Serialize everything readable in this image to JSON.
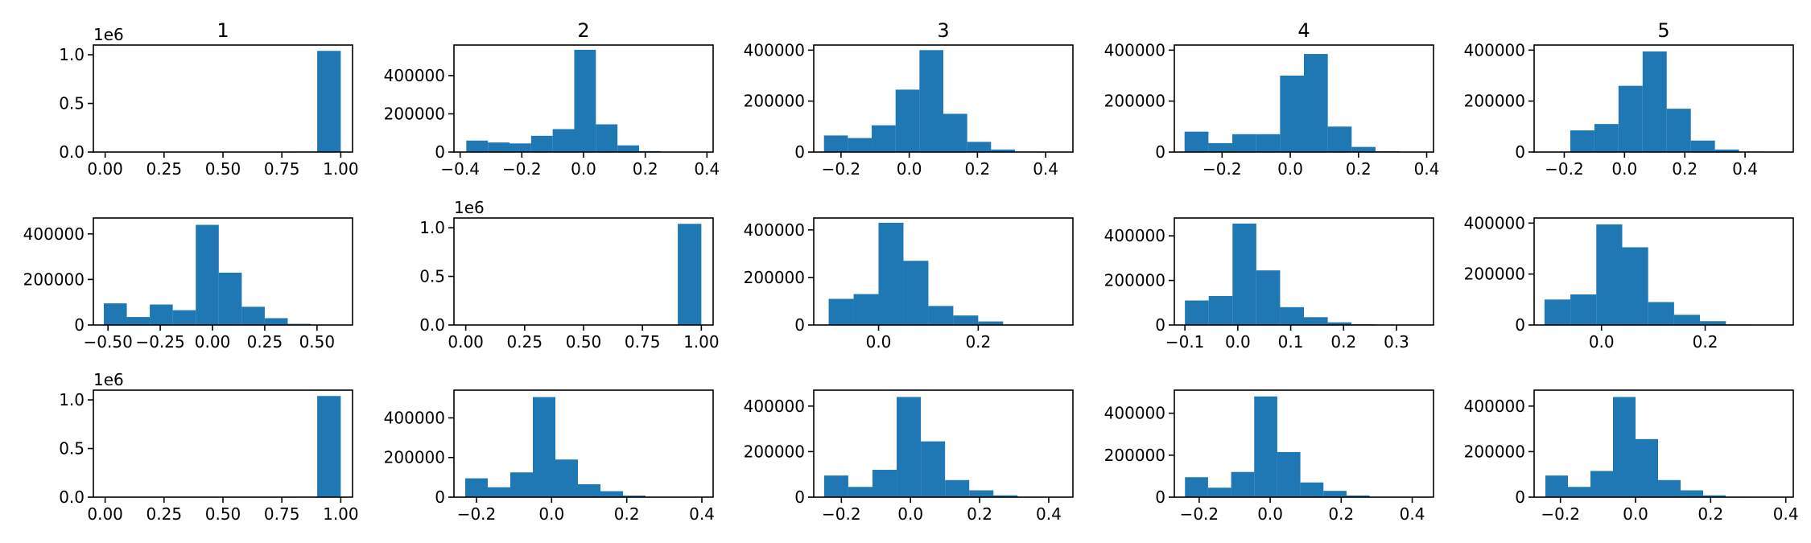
{
  "chart_data": {
    "type": "bar",
    "layout": "3x5 grid of histograms",
    "color": "#1f77b4",
    "panels": [
      {
        "row": 1,
        "col": 1,
        "title": "1",
        "xlim": [
          -0.05,
          1.05
        ],
        "ylim": [
          0,
          1100000
        ],
        "y_offset_label": "1e6",
        "xticks": [
          0.0,
          0.25,
          0.5,
          0.75,
          1.0
        ],
        "xtick_labels": [
          "0.00",
          "0.25",
          "0.50",
          "0.75",
          "1.00"
        ],
        "yticks": [
          0,
          500000,
          1000000
        ],
        "ytick_labels": [
          "0.0",
          "0.5",
          "1.0"
        ],
        "bin_edges": [
          0.0,
          0.1,
          0.2,
          0.3,
          0.4,
          0.5,
          0.6,
          0.7,
          0.8,
          0.9,
          1.0
        ],
        "counts": [
          0,
          0,
          0,
          0,
          0,
          0,
          0,
          0,
          5000,
          1040000
        ]
      },
      {
        "row": 1,
        "col": 2,
        "title": "2",
        "xlim": [
          -0.42,
          0.42
        ],
        "ylim": [
          0,
          560000
        ],
        "y_offset_label": "",
        "xticks": [
          -0.4,
          -0.2,
          0.0,
          0.2,
          0.4
        ],
        "xtick_labels": [
          "−0.4",
          "−0.2",
          "0.0",
          "0.2",
          "0.4"
        ],
        "yticks": [
          0,
          200000,
          400000
        ],
        "ytick_labels": [
          "0",
          "200000",
          "400000"
        ],
        "bin_edges": [
          -0.38,
          -0.31,
          -0.24,
          -0.17,
          -0.1,
          -0.03,
          0.04,
          0.11,
          0.18,
          0.25,
          0.32
        ],
        "counts": [
          60000,
          50000,
          45000,
          85000,
          120000,
          535000,
          145000,
          35000,
          5000,
          2000
        ]
      },
      {
        "row": 1,
        "col": 3,
        "title": "3",
        "xlim": [
          -0.28,
          0.48
        ],
        "ylim": [
          0,
          420000
        ],
        "y_offset_label": "",
        "xticks": [
          -0.2,
          0.0,
          0.2,
          0.4
        ],
        "xtick_labels": [
          "−0.2",
          "0.0",
          "0.2",
          "0.4"
        ],
        "yticks": [
          0,
          200000,
          400000
        ],
        "ytick_labels": [
          "0",
          "200000",
          "400000"
        ],
        "bin_edges": [
          -0.25,
          -0.18,
          -0.11,
          -0.04,
          0.03,
          0.1,
          0.17,
          0.24,
          0.31,
          0.38,
          0.45
        ],
        "counts": [
          65000,
          55000,
          105000,
          245000,
          400000,
          150000,
          40000,
          10000,
          2000,
          1000
        ]
      },
      {
        "row": 1,
        "col": 4,
        "title": "4",
        "xlim": [
          -0.34,
          0.42
        ],
        "ylim": [
          0,
          420000
        ],
        "y_offset_label": "",
        "xticks": [
          -0.2,
          0.0,
          0.2,
          0.4
        ],
        "xtick_labels": [
          "−0.2",
          "0.0",
          "0.2",
          "0.4"
        ],
        "yticks": [
          0,
          200000,
          400000
        ],
        "ytick_labels": [
          "0",
          "200000",
          "400000"
        ],
        "bin_edges": [
          -0.31,
          -0.24,
          -0.17,
          -0.1,
          -0.03,
          0.04,
          0.11,
          0.18,
          0.25,
          0.32,
          0.39
        ],
        "counts": [
          80000,
          35000,
          70000,
          70000,
          300000,
          385000,
          100000,
          20000,
          3000,
          1000
        ]
      },
      {
        "row": 1,
        "col": 5,
        "title": "5",
        "xlim": [
          -0.3,
          0.56
        ],
        "ylim": [
          0,
          420000
        ],
        "y_offset_label": "",
        "xticks": [
          -0.2,
          0.0,
          0.2,
          0.4
        ],
        "xtick_labels": [
          "−0.2",
          "0.0",
          "0.2",
          "0.4"
        ],
        "yticks": [
          0,
          200000,
          400000
        ],
        "ytick_labels": [
          "0",
          "200000",
          "400000"
        ],
        "bin_edges": [
          -0.26,
          -0.18,
          -0.1,
          -0.02,
          0.06,
          0.14,
          0.22,
          0.3,
          0.38,
          0.46,
          0.54
        ],
        "counts": [
          0,
          85000,
          110000,
          260000,
          395000,
          170000,
          45000,
          10000,
          2000,
          1000
        ]
      },
      {
        "row": 2,
        "col": 1,
        "title": "",
        "xlim": [
          -0.57,
          0.67
        ],
        "ylim": [
          0,
          470000
        ],
        "y_offset_label": "",
        "xticks": [
          -0.5,
          -0.25,
          0.0,
          0.25,
          0.5
        ],
        "xtick_labels": [
          "−0.50",
          "−0.25",
          "0.00",
          "0.25",
          "0.50"
        ],
        "yticks": [
          0,
          200000,
          400000
        ],
        "ytick_labels": [
          "0",
          "200000",
          "400000"
        ],
        "bin_edges": [
          -0.52,
          -0.41,
          -0.3,
          -0.19,
          -0.08,
          0.03,
          0.14,
          0.25,
          0.36,
          0.47,
          0.58
        ],
        "counts": [
          95000,
          35000,
          90000,
          65000,
          440000,
          230000,
          80000,
          30000,
          5000,
          1000
        ]
      },
      {
        "row": 2,
        "col": 2,
        "title": "",
        "xlim": [
          -0.05,
          1.05
        ],
        "ylim": [
          0,
          1100000
        ],
        "y_offset_label": "1e6",
        "xticks": [
          0.0,
          0.25,
          0.5,
          0.75,
          1.0
        ],
        "xtick_labels": [
          "0.00",
          "0.25",
          "0.50",
          "0.75",
          "1.00"
        ],
        "yticks": [
          0,
          500000,
          1000000
        ],
        "ytick_labels": [
          "0.0",
          "0.5",
          "1.0"
        ],
        "bin_edges": [
          0.0,
          0.1,
          0.2,
          0.3,
          0.4,
          0.5,
          0.6,
          0.7,
          0.8,
          0.9,
          1.0
        ],
        "counts": [
          0,
          0,
          0,
          0,
          0,
          0,
          0,
          0,
          5000,
          1040000
        ]
      },
      {
        "row": 2,
        "col": 3,
        "title": "",
        "xlim": [
          -0.13,
          0.39
        ],
        "ylim": [
          0,
          450000
        ],
        "y_offset_label": "",
        "xticks": [
          0.0,
          0.2
        ],
        "xtick_labels": [
          "0.0",
          "0.2"
        ],
        "yticks": [
          0,
          200000,
          400000
        ],
        "ytick_labels": [
          "0",
          "200000",
          "400000"
        ],
        "bin_edges": [
          -0.1,
          -0.05,
          0.0,
          0.05,
          0.1,
          0.15,
          0.2,
          0.25,
          0.3,
          0.35,
          0.4
        ],
        "counts": [
          110000,
          130000,
          430000,
          270000,
          80000,
          40000,
          15000,
          2000,
          1000,
          0
        ]
      },
      {
        "row": 2,
        "col": 4,
        "title": "",
        "xlim": [
          -0.12,
          0.37
        ],
        "ylim": [
          0,
          480000
        ],
        "y_offset_label": "",
        "xticks": [
          -0.1,
          0.0,
          0.1,
          0.2,
          0.3
        ],
        "xtick_labels": [
          "−0.1",
          "0.0",
          "0.1",
          "0.2",
          "0.3"
        ],
        "yticks": [
          0,
          200000,
          400000
        ],
        "ytick_labels": [
          "0",
          "200000",
          "400000"
        ],
        "bin_edges": [
          -0.1,
          -0.055,
          -0.01,
          0.035,
          0.08,
          0.125,
          0.17,
          0.215,
          0.26,
          0.305,
          0.35
        ],
        "counts": [
          110000,
          130000,
          455000,
          245000,
          80000,
          35000,
          12000,
          3000,
          1000,
          0
        ]
      },
      {
        "row": 2,
        "col": 5,
        "title": "",
        "xlim": [
          -0.13,
          0.37
        ],
        "ylim": [
          0,
          420000
        ],
        "y_offset_label": "",
        "xticks": [
          0.0,
          0.2
        ],
        "xtick_labels": [
          "0.0",
          "0.2"
        ],
        "yticks": [
          0,
          200000,
          400000
        ],
        "ytick_labels": [
          "0",
          "200000",
          "400000"
        ],
        "bin_edges": [
          -0.11,
          -0.06,
          -0.01,
          0.04,
          0.09,
          0.14,
          0.19,
          0.24,
          0.29,
          0.34,
          0.39
        ],
        "counts": [
          100000,
          120000,
          395000,
          305000,
          90000,
          40000,
          15000,
          2000,
          1000,
          0
        ]
      },
      {
        "row": 3,
        "col": 1,
        "title": "",
        "xlim": [
          -0.05,
          1.05
        ],
        "ylim": [
          0,
          1100000
        ],
        "y_offset_label": "1e6",
        "xticks": [
          0.0,
          0.25,
          0.5,
          0.75,
          1.0
        ],
        "xtick_labels": [
          "0.00",
          "0.25",
          "0.50",
          "0.75",
          "1.00"
        ],
        "yticks": [
          0,
          500000,
          1000000
        ],
        "ytick_labels": [
          "0.0",
          "0.5",
          "1.0"
        ],
        "bin_edges": [
          0.0,
          0.1,
          0.2,
          0.3,
          0.4,
          0.5,
          0.6,
          0.7,
          0.8,
          0.9,
          1.0
        ],
        "counts": [
          0,
          0,
          0,
          0,
          0,
          0,
          0,
          0,
          5000,
          1040000
        ]
      },
      {
        "row": 3,
        "col": 2,
        "title": "",
        "xlim": [
          -0.26,
          0.43
        ],
        "ylim": [
          0,
          540000
        ],
        "y_offset_label": "",
        "xticks": [
          -0.2,
          0.0,
          0.2,
          0.4
        ],
        "xtick_labels": [
          "−0.2",
          "0.0",
          "0.2",
          "0.4"
        ],
        "yticks": [
          0,
          200000,
          400000
        ],
        "ytick_labels": [
          "0",
          "200000",
          "400000"
        ],
        "bin_edges": [
          -0.23,
          -0.17,
          -0.11,
          -0.05,
          0.01,
          0.07,
          0.13,
          0.19,
          0.25,
          0.31,
          0.37
        ],
        "counts": [
          95000,
          50000,
          125000,
          505000,
          190000,
          65000,
          30000,
          8000,
          2000,
          1000
        ]
      },
      {
        "row": 3,
        "col": 3,
        "title": "",
        "xlim": [
          -0.28,
          0.47
        ],
        "ylim": [
          0,
          470000
        ],
        "y_offset_label": "",
        "xticks": [
          -0.2,
          0.0,
          0.2,
          0.4
        ],
        "xtick_labels": [
          "−0.2",
          "0.0",
          "0.2",
          "0.4"
        ],
        "yticks": [
          0,
          200000,
          400000
        ],
        "ytick_labels": [
          "0",
          "200000",
          "400000"
        ],
        "bin_edges": [
          -0.25,
          -0.18,
          -0.11,
          -0.04,
          0.03,
          0.1,
          0.17,
          0.24,
          0.31,
          0.38,
          0.45
        ],
        "counts": [
          95000,
          45000,
          120000,
          440000,
          245000,
          75000,
          30000,
          8000,
          2000,
          1000
        ]
      },
      {
        "row": 3,
        "col": 4,
        "title": "",
        "xlim": [
          -0.27,
          0.46
        ],
        "ylim": [
          0,
          510000
        ],
        "y_offset_label": "",
        "xticks": [
          -0.2,
          0.0,
          0.2,
          0.4
        ],
        "xtick_labels": [
          "−0.2",
          "0.0",
          "0.2",
          "0.4"
        ],
        "yticks": [
          0,
          200000,
          400000
        ],
        "ytick_labels": [
          "0",
          "200000",
          "400000"
        ],
        "bin_edges": [
          -0.24,
          -0.175,
          -0.11,
          -0.045,
          0.02,
          0.085,
          0.15,
          0.215,
          0.28,
          0.345,
          0.41
        ],
        "counts": [
          95000,
          45000,
          120000,
          480000,
          215000,
          70000,
          30000,
          8000,
          2000,
          1000
        ]
      },
      {
        "row": 3,
        "col": 5,
        "title": "",
        "xlim": [
          -0.27,
          0.42
        ],
        "ylim": [
          0,
          470000
        ],
        "y_offset_label": "",
        "xticks": [
          -0.2,
          0.0,
          0.2,
          0.4
        ],
        "xtick_labels": [
          "−0.2",
          "0.0",
          "0.2",
          "0.4"
        ],
        "yticks": [
          0,
          200000,
          400000
        ],
        "ytick_labels": [
          "0",
          "200000",
          "400000"
        ],
        "bin_edges": [
          -0.24,
          -0.18,
          -0.12,
          -0.06,
          0.0,
          0.06,
          0.12,
          0.18,
          0.24,
          0.3,
          0.36
        ],
        "counts": [
          95000,
          45000,
          115000,
          440000,
          255000,
          75000,
          30000,
          8000,
          2000,
          1000
        ]
      }
    ]
  }
}
